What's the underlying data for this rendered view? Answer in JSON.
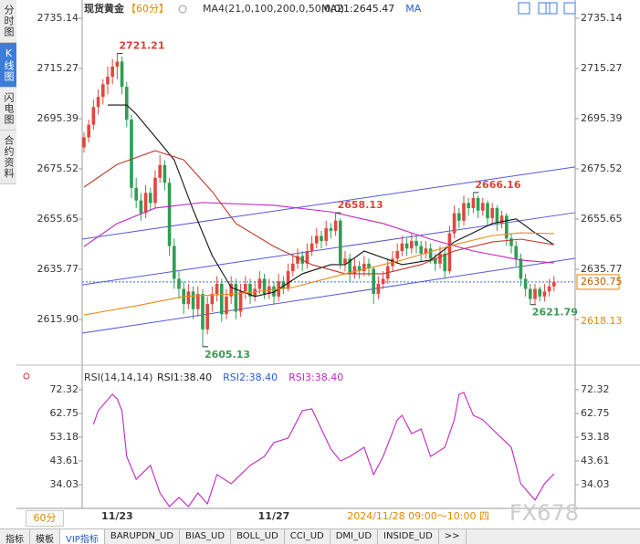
{
  "sidebar": {
    "items": [
      "分时图",
      "K线图",
      "闪电图",
      "合约资料"
    ],
    "active": 1
  },
  "toolbar": {
    "period": "60分",
    "tabs": [
      "指标",
      "模板",
      "VIP指标",
      "BARUPDN_UD",
      "BIAS_UD",
      "BOLL_UD",
      "CCI_UD",
      "DMI_UD",
      "INSIDE_UD",
      ">>"
    ],
    "active": 2
  },
  "watermark": "FX678",
  "chart_data": [
    {
      "type": "candlestick",
      "title": "现货黄金",
      "period": "【60分】",
      "indicator": "MA4(21,0,100,200,0,50,0,0)",
      "legend": [
        {
          "label": "MA21:2645.47",
          "color": "#222222"
        },
        {
          "label": "MA",
          "color": "#2a5bd7"
        }
      ],
      "up_color": "#e0483c",
      "down_color": "#2e9e55",
      "xlim": [
        -0.38,
        103.46
      ],
      "ylim": [
        2598.56,
        2740.56
      ],
      "yticks": [
        2735.14,
        2715.27,
        2695.39,
        2675.52,
        2655.65,
        2635.77,
        {
          "value": 2615.9,
          "label": "2615.90"
        }
      ],
      "xlabels": [
        {
          "x": 7,
          "label": "11/23"
        },
        {
          "x": 40,
          "label": "11/27"
        }
      ],
      "cursor_time": "2024/11/28 09:00～10:00 四",
      "last_price": 2630.75,
      "last_price_color": "#2f6fd0",
      "price_marker": 2618.13,
      "price_marker_color": "#e08a00",
      "candles": [
        [
          2684,
          2690,
          2682,
          2688
        ],
        [
          2688,
          2695,
          2686,
          2693
        ],
        [
          2693,
          2703,
          2691,
          2700
        ],
        [
          2700,
          2707,
          2697,
          2704
        ],
        [
          2704,
          2711,
          2701,
          2709
        ],
        [
          2709,
          2716,
          2705,
          2712
        ],
        [
          2712,
          2719,
          2709,
          2716
        ],
        [
          2716,
          2721.21,
          2711,
          2718
        ],
        [
          2718,
          2720,
          2705,
          2708
        ],
        [
          2708,
          2710,
          2692,
          2695
        ],
        [
          2695,
          2697,
          2664,
          2668
        ],
        [
          2668,
          2672,
          2660,
          2663
        ],
        [
          2663,
          2666,
          2655,
          2658
        ],
        [
          2658,
          2669,
          2656,
          2666
        ],
        [
          2666,
          2668,
          2659,
          2662
        ],
        [
          2662,
          2675,
          2660,
          2672
        ],
        [
          2672,
          2681,
          2670,
          2677
        ],
        [
          2677,
          2679,
          2667,
          2670
        ],
        [
          2670,
          2672,
          2641,
          2645
        ],
        [
          2645,
          2648,
          2628,
          2632
        ],
        [
          2632,
          2635,
          2624,
          2628
        ],
        [
          2628,
          2631,
          2618,
          2622
        ],
        [
          2622,
          2630,
          2620,
          2627
        ],
        [
          2627,
          2629,
          2616,
          2620
        ],
        [
          2620,
          2629,
          2617,
          2626
        ],
        [
          2626,
          2628,
          2605.13,
          2612
        ],
        [
          2612,
          2625,
          2610,
          2622
        ],
        [
          2622,
          2629,
          2619,
          2626
        ],
        [
          2626,
          2633,
          2623,
          2630
        ],
        [
          2630,
          2632,
          2615,
          2618
        ],
        [
          2618,
          2628,
          2616,
          2625
        ],
        [
          2625,
          2633,
          2622,
          2630
        ],
        [
          2630,
          2632,
          2616,
          2619
        ],
        [
          2619,
          2630,
          2617,
          2627
        ],
        [
          2627,
          2633,
          2624,
          2630
        ],
        [
          2630,
          2632,
          2622,
          2625
        ],
        [
          2625,
          2631,
          2623,
          2628
        ],
        [
          2628,
          2635,
          2626,
          2632
        ],
        [
          2632,
          2634,
          2624,
          2626
        ],
        [
          2626,
          2632,
          2624,
          2629
        ],
        [
          2629,
          2631,
          2622,
          2625
        ],
        [
          2625,
          2634,
          2623,
          2631
        ],
        [
          2631,
          2633,
          2626,
          2628
        ],
        [
          2628,
          2638,
          2627,
          2635
        ],
        [
          2635,
          2641,
          2633,
          2638
        ],
        [
          2638,
          2644,
          2636,
          2641
        ],
        [
          2641,
          2643,
          2635,
          2638
        ],
        [
          2638,
          2646,
          2636,
          2643
        ],
        [
          2643,
          2649,
          2641,
          2646
        ],
        [
          2646,
          2652,
          2644,
          2649
        ],
        [
          2649,
          2651,
          2644,
          2647
        ],
        [
          2647,
          2655,
          2645,
          2652
        ],
        [
          2652,
          2654,
          2648,
          2651
        ],
        [
          2651,
          2658.13,
          2649,
          2655
        ],
        [
          2655,
          2656,
          2636,
          2638
        ],
        [
          2638,
          2643,
          2635,
          2640
        ],
        [
          2640,
          2642,
          2631,
          2634
        ],
        [
          2634,
          2640,
          2632,
          2637
        ],
        [
          2637,
          2639,
          2632,
          2635
        ],
        [
          2635,
          2641,
          2633,
          2638
        ],
        [
          2638,
          2640,
          2633,
          2636
        ],
        [
          2636,
          2637,
          2622,
          2626
        ],
        [
          2626,
          2633,
          2624,
          2630
        ],
        [
          2630,
          2635,
          2628,
          2632
        ],
        [
          2632,
          2640,
          2630,
          2637
        ],
        [
          2637,
          2643,
          2635,
          2640
        ],
        [
          2640,
          2646,
          2638,
          2643
        ],
        [
          2643,
          2649,
          2641,
          2646
        ],
        [
          2646,
          2648,
          2641,
          2644
        ],
        [
          2644,
          2650,
          2642,
          2647
        ],
        [
          2647,
          2649,
          2642,
          2645
        ],
        [
          2645,
          2647,
          2639,
          2642
        ],
        [
          2642,
          2647,
          2640,
          2644
        ],
        [
          2644,
          2646,
          2638,
          2640
        ],
        [
          2640,
          2642,
          2635,
          2638
        ],
        [
          2638,
          2645,
          2636,
          2642
        ],
        [
          2642,
          2644,
          2632,
          2635
        ],
        [
          2635,
          2653,
          2634,
          2650
        ],
        [
          2650,
          2661,
          2648,
          2658
        ],
        [
          2658,
          2660,
          2652,
          2655
        ],
        [
          2655,
          2665,
          2653,
          2662
        ],
        [
          2662,
          2664,
          2657,
          2660
        ],
        [
          2660,
          2666.16,
          2658,
          2664
        ],
        [
          2664,
          2665,
          2656,
          2659
        ],
        [
          2659,
          2664,
          2657,
          2662
        ],
        [
          2662,
          2663,
          2653,
          2656
        ],
        [
          2656,
          2662,
          2654,
          2660
        ],
        [
          2660,
          2661,
          2651,
          2654
        ],
        [
          2654,
          2659,
          2652,
          2657
        ],
        [
          2657,
          2658,
          2645,
          2648
        ],
        [
          2648,
          2650,
          2642,
          2645
        ],
        [
          2645,
          2647,
          2637,
          2640
        ],
        [
          2640,
          2642,
          2629,
          2632
        ],
        [
          2632,
          2634,
          2625,
          2628
        ],
        [
          2628,
          2630,
          2621.79,
          2624
        ],
        [
          2624,
          2630,
          2622,
          2628
        ],
        [
          2628,
          2629,
          2623,
          2625
        ],
        [
          2625,
          2630,
          2623,
          2627
        ],
        [
          2627,
          2632,
          2625,
          2629
        ],
        [
          2629,
          2633,
          2627,
          2630.75
        ]
      ],
      "series": [
        {
          "color": "#111111",
          "x": [
            5,
            9,
            11,
            15,
            19,
            23,
            27,
            31,
            36,
            40,
            46,
            52,
            55,
            59,
            67,
            73,
            78,
            86,
            91,
            95,
            99
          ],
          "values": [
            2700.8,
            2700.8,
            2697.2,
            2688.2,
            2679.1,
            2659.3,
            2641.2,
            2628.6,
            2625.0,
            2626.7,
            2634.0,
            2637.6,
            2637.6,
            2643.0,
            2637.6,
            2639.4,
            2646.6,
            2653.9,
            2655.7,
            2650.2,
            2645.5
          ]
        },
        {
          "color": "#c0392b",
          "x": [
            0,
            7,
            15,
            21,
            27,
            32,
            40,
            48,
            55,
            63,
            71,
            78,
            86,
            92,
            99
          ],
          "values": [
            2668.3,
            2677.3,
            2682.7,
            2679.1,
            2666.5,
            2653.9,
            2644.8,
            2637.6,
            2634.0,
            2634.0,
            2637.6,
            2643.0,
            2646.6,
            2647.7,
            2645.5
          ]
        },
        {
          "color": "#c026c0",
          "x": [
            0,
            7,
            15,
            25,
            40,
            52,
            63,
            73,
            82,
            92,
            99
          ],
          "values": [
            2644.8,
            2653.9,
            2660.0,
            2662.2,
            2661.1,
            2658.5,
            2653.9,
            2647.7,
            2643.0,
            2639.4,
            2638.3
          ]
        },
        {
          "color": "#e88a1a",
          "x": [
            0,
            11,
            21,
            32,
            44,
            55,
            67,
            78,
            86,
            92,
            99
          ],
          "values": [
            2617.7,
            2621.3,
            2625.0,
            2626.0,
            2628.6,
            2634.0,
            2639.4,
            2645.5,
            2649.1,
            2650.2,
            2649.9
          ]
        }
      ],
      "trendline_color": "#5558d8",
      "trendlines": [
        {
          "x": [
            -0.38,
            103.46
          ],
          "y": [
            2610.5,
            2640.1
          ]
        },
        {
          "x": [
            -0.38,
            103.46
          ],
          "y": [
            2629.6,
            2658.2
          ]
        },
        {
          "x": [
            -0.38,
            103.46
          ],
          "y": [
            2647.7,
            2676.3
          ]
        }
      ],
      "annotations": [
        {
          "x": 7,
          "value": 2721.21,
          "color": "#d9443a"
        },
        {
          "x": 25,
          "value": 2605.13,
          "color": "#3c9a52"
        },
        {
          "x": 53,
          "value": 2658.13,
          "color": "#d9443a"
        },
        {
          "x": 82,
          "value": 2666.16,
          "color": "#d9443a"
        },
        {
          "x": 94,
          "value": 2621.79,
          "color": "#3c9a52"
        }
      ]
    },
    {
      "type": "line",
      "title": "RSI(14,14,14)",
      "legend": [
        {
          "label": "RSI1:38.40",
          "color": "#222222"
        },
        {
          "label": "RSI2:38.40",
          "color": "#2a5bd7"
        },
        {
          "label": "RSI3:38.40",
          "color": "#c026c0"
        }
      ],
      "ylim": [
        25.19,
        80.42
      ],
      "yticks": [
        72.32,
        62.75,
        53.18,
        43.61,
        34.03
      ],
      "color": "#c026c0",
      "x": [
        2,
        3,
        6,
        7,
        8,
        9,
        11,
        12,
        14,
        16,
        18,
        20,
        22,
        24,
        26,
        28,
        31,
        35,
        38,
        40,
        43,
        46,
        48,
        50,
        52,
        54,
        56,
        59,
        61,
        63,
        66,
        67,
        69,
        71,
        73,
        76,
        78,
        79,
        80,
        82,
        84,
        87,
        90,
        92,
        95,
        97,
        99
      ],
      "values": [
        58.3,
        63.9,
        70.5,
        68.6,
        63.9,
        45.4,
        36.2,
        38.1,
        41.8,
        30.7,
        25.2,
        28.9,
        25.2,
        30.7,
        26.3,
        38.1,
        34.4,
        41.8,
        45.4,
        51.0,
        52.8,
        63.9,
        64.6,
        56.5,
        48.4,
        43.6,
        45.4,
        49.1,
        38.1,
        45.4,
        60.2,
        62.0,
        54.6,
        56.5,
        45.4,
        49.1,
        60.2,
        70.5,
        71.2,
        62.0,
        60.2,
        54.6,
        49.1,
        34.4,
        27.8,
        34.4,
        38.4
      ]
    }
  ]
}
